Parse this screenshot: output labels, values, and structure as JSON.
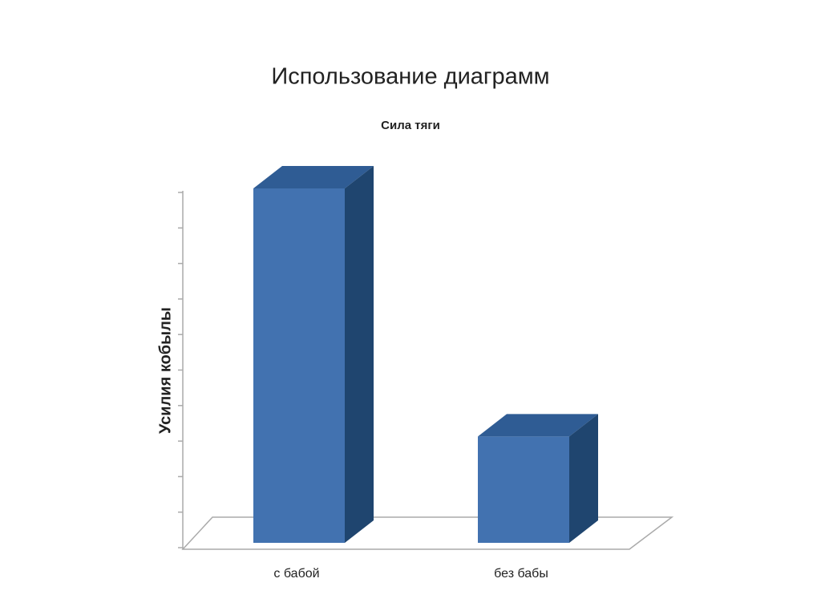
{
  "slide_title": "Использование диаграмм",
  "chart_data": {
    "type": "bar3d",
    "title": "Сила тяги",
    "ylabel": "Усилия кобылы",
    "categories": [
      "с бабой",
      "без бабы"
    ],
    "values": [
      10,
      3
    ],
    "color": "#4272b0",
    "top_color": "#2f5c94",
    "side_color": "#1f456f",
    "ylim": [
      0,
      10
    ],
    "yticks": [
      0,
      1,
      2,
      3,
      4,
      5,
      6,
      7,
      8,
      9,
      10
    ]
  }
}
